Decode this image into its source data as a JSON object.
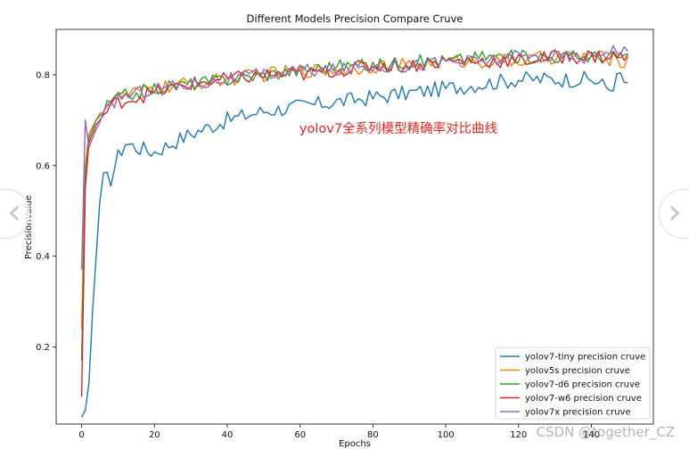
{
  "chart_data": {
    "type": "line",
    "title": "Different Models Precision Compare Cruve",
    "xlabel": "Epochs",
    "ylabel": "PrecisionValue",
    "xlim": [
      -7,
      157
    ],
    "ylim": [
      0.03,
      0.9
    ],
    "xticks": [
      "0",
      "20",
      "40",
      "60",
      "80",
      "100",
      "120",
      "140"
    ],
    "yticks": [
      "0.2",
      "0.4",
      "0.6",
      "0.8"
    ],
    "grid": false,
    "legend_position": "lower-right",
    "annotation": "yolov7全系列模型精确率对比曲线",
    "annotation_color": "#e8241f",
    "series": [
      {
        "name": "yolov7-tiny precision cruve",
        "color": "#1f77b4",
        "anchors": [
          [
            0,
            0.045
          ],
          [
            1,
            0.06
          ],
          [
            2,
            0.12
          ],
          [
            3,
            0.28
          ],
          [
            4,
            0.4
          ],
          [
            5,
            0.52
          ],
          [
            6,
            0.57
          ],
          [
            8,
            0.57
          ],
          [
            10,
            0.62
          ],
          [
            12,
            0.65
          ],
          [
            15,
            0.64
          ],
          [
            20,
            0.63
          ],
          [
            25,
            0.65
          ],
          [
            30,
            0.67
          ],
          [
            40,
            0.7
          ],
          [
            50,
            0.72
          ],
          [
            60,
            0.73
          ],
          [
            70,
            0.74
          ],
          [
            80,
            0.75
          ],
          [
            90,
            0.76
          ],
          [
            100,
            0.77
          ],
          [
            110,
            0.78
          ],
          [
            120,
            0.79
          ],
          [
            130,
            0.79
          ],
          [
            140,
            0.79
          ],
          [
            145,
            0.77
          ],
          [
            148,
            0.8
          ],
          [
            150,
            0.77
          ]
        ],
        "noise": 0.018
      },
      {
        "name": "yolov5s precision cruve",
        "color": "#ff7f0e",
        "anchors": [
          [
            0,
            0.24
          ],
          [
            1,
            0.6
          ],
          [
            2,
            0.67
          ],
          [
            4,
            0.7
          ],
          [
            6,
            0.73
          ],
          [
            8,
            0.74
          ],
          [
            10,
            0.75
          ],
          [
            15,
            0.76
          ],
          [
            20,
            0.77
          ],
          [
            30,
            0.78
          ],
          [
            40,
            0.79
          ],
          [
            50,
            0.8
          ],
          [
            60,
            0.81
          ],
          [
            70,
            0.81
          ],
          [
            80,
            0.82
          ],
          [
            90,
            0.82
          ],
          [
            100,
            0.83
          ],
          [
            110,
            0.83
          ],
          [
            120,
            0.83
          ],
          [
            130,
            0.84
          ],
          [
            140,
            0.84
          ],
          [
            150,
            0.83
          ]
        ],
        "noise": 0.016
      },
      {
        "name": "yolov7-d6 precision cruve",
        "color": "#2ca02c",
        "anchors": [
          [
            0,
            0.17
          ],
          [
            1,
            0.58
          ],
          [
            2,
            0.66
          ],
          [
            4,
            0.7
          ],
          [
            6,
            0.72
          ],
          [
            8,
            0.74
          ],
          [
            10,
            0.75
          ],
          [
            15,
            0.76
          ],
          [
            20,
            0.77
          ],
          [
            30,
            0.78
          ],
          [
            40,
            0.79
          ],
          [
            50,
            0.8
          ],
          [
            60,
            0.81
          ],
          [
            70,
            0.82
          ],
          [
            80,
            0.82
          ],
          [
            90,
            0.83
          ],
          [
            100,
            0.83
          ],
          [
            110,
            0.84
          ],
          [
            120,
            0.84
          ],
          [
            130,
            0.84
          ],
          [
            140,
            0.84
          ],
          [
            150,
            0.84
          ]
        ],
        "noise": 0.015
      },
      {
        "name": "yolov7-w6 precision cruve",
        "color": "#d62728",
        "anchors": [
          [
            0,
            0.09
          ],
          [
            1,
            0.55
          ],
          [
            2,
            0.65
          ],
          [
            4,
            0.69
          ],
          [
            6,
            0.71
          ],
          [
            8,
            0.73
          ],
          [
            10,
            0.74
          ],
          [
            15,
            0.75
          ],
          [
            20,
            0.76
          ],
          [
            30,
            0.78
          ],
          [
            40,
            0.79
          ],
          [
            50,
            0.8
          ],
          [
            60,
            0.8
          ],
          [
            70,
            0.81
          ],
          [
            80,
            0.82
          ],
          [
            90,
            0.82
          ],
          [
            100,
            0.83
          ],
          [
            110,
            0.83
          ],
          [
            120,
            0.83
          ],
          [
            130,
            0.84
          ],
          [
            140,
            0.84
          ],
          [
            150,
            0.84
          ]
        ],
        "noise": 0.016
      },
      {
        "name": "yolov7x precision cruve",
        "color": "#9467bd",
        "anchors": [
          [
            0,
            0.37
          ],
          [
            1,
            0.7
          ],
          [
            2,
            0.64
          ],
          [
            4,
            0.68
          ],
          [
            6,
            0.71
          ],
          [
            8,
            0.73
          ],
          [
            10,
            0.75
          ],
          [
            15,
            0.76
          ],
          [
            20,
            0.77
          ],
          [
            30,
            0.78
          ],
          [
            40,
            0.79
          ],
          [
            50,
            0.8
          ],
          [
            60,
            0.81
          ],
          [
            70,
            0.81
          ],
          [
            80,
            0.82
          ],
          [
            90,
            0.82
          ],
          [
            100,
            0.83
          ],
          [
            110,
            0.83
          ],
          [
            120,
            0.84
          ],
          [
            130,
            0.84
          ],
          [
            140,
            0.84
          ],
          [
            145,
            0.86
          ],
          [
            150,
            0.85
          ]
        ],
        "noise": 0.015
      }
    ]
  },
  "watermark": "CSDN @together_CZ",
  "icons": {
    "prev": "chevron-left-icon",
    "next": "chevron-right-icon"
  }
}
